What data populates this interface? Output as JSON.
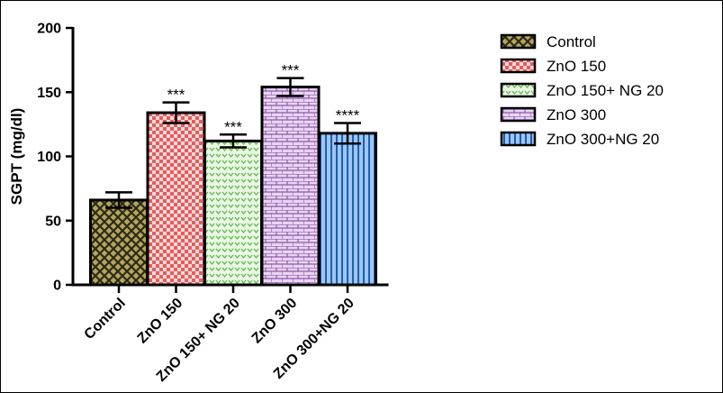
{
  "chart_data": {
    "type": "bar",
    "title": "",
    "xlabel": "",
    "ylabel": "SGPT (mg/dl)",
    "ylim": [
      0,
      200
    ],
    "yticks": [
      0,
      50,
      100,
      150,
      200
    ],
    "grid": false,
    "legend_position": "top-right",
    "categories": [
      "Control",
      "ZnO 150",
      "ZnO 150+ NG 20",
      "ZnO 300",
      "ZnO 300+NG 20"
    ],
    "values": [
      66,
      134,
      112,
      154,
      118
    ],
    "errors": [
      6,
      8,
      5,
      7,
      8
    ],
    "significance": [
      "",
      "***",
      "***",
      "***",
      "****"
    ],
    "bar_patterns": [
      "crosshatch",
      "checker",
      "dots",
      "brick",
      "stripes"
    ],
    "bar_colors": [
      "#b5a55a",
      "#ee8080",
      "#c3ecb8",
      "#d8b8e8",
      "#9ec6f2"
    ]
  }
}
